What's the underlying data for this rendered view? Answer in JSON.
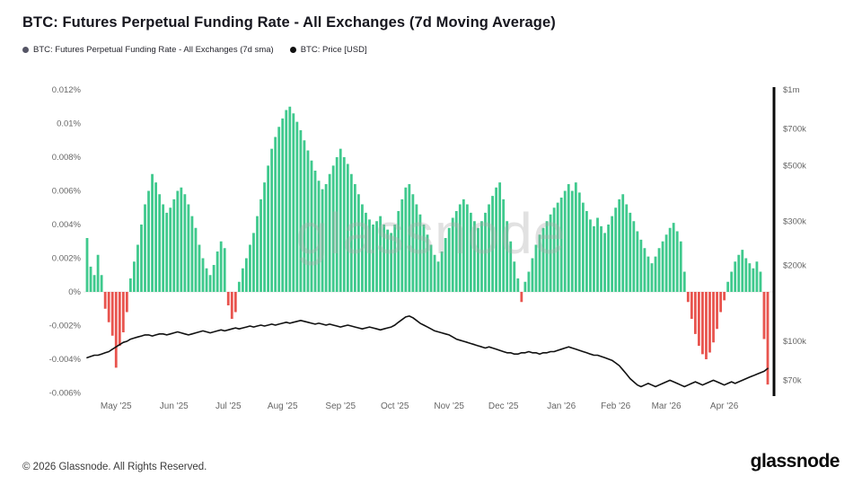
{
  "header": {
    "title": "BTC: Futures Perpetual Funding Rate - All Exchanges (7d Moving Average)"
  },
  "legend": {
    "funding": "BTC: Futures Perpetual Funding Rate - All Exchanges (7d sma)",
    "price": "BTC: Price [USD]"
  },
  "watermark": "glassnode",
  "footer": {
    "copyright": "© 2026 Glassnode. All Rights Reserved.",
    "logo_text": "glassnode"
  },
  "colors": {
    "positive_bar": "#3fc98d",
    "negative_bar": "#e8544e",
    "price_line": "#111111",
    "funding_legend_dot": "#555566",
    "price_legend_dot": "#111111",
    "axis_text": "#666666",
    "title_text": "#16161e",
    "watermark_gray": "#d9d9d9"
  },
  "chart_data": {
    "type": "bar",
    "title": "BTC: Futures Perpetual Funding Rate - All Exchanges (7d Moving Average)",
    "legend_position": "top-left",
    "grid": false,
    "x_tick_labels": [
      "May '25",
      "Jun '25",
      "Jul '25",
      "Aug '25",
      "Sep '25",
      "Oct '25",
      "Nov '25",
      "Dec '25",
      "Jan '26",
      "Feb '26",
      "Mar '26",
      "Apr '26"
    ],
    "x_tick_indices": [
      8,
      24,
      39,
      54,
      70,
      85,
      100,
      115,
      131,
      146,
      160,
      176
    ],
    "left_axis": {
      "unit": "%",
      "range": [
        -0.006,
        0.012
      ],
      "ticks": [
        0.012,
        0.01,
        0.008,
        0.006,
        0.004,
        0.002,
        0,
        -0.002,
        -0.004,
        -0.006
      ],
      "labels": [
        "0.012%",
        "0.01%",
        "0.008%",
        "0.006%",
        "0.004%",
        "0.002%",
        "0%",
        "-0.002%",
        "-0.004%",
        "-0.006%"
      ]
    },
    "right_axis": {
      "scale": "log",
      "unit": "USD (thousands)",
      "ticks": [
        1000,
        700,
        500,
        300,
        200,
        100,
        70
      ],
      "labels": [
        "$1m",
        "$700k",
        "$500k",
        "$300k",
        "$200k",
        "$100k",
        "$70k"
      ]
    },
    "series": [
      {
        "name": "BTC: Futures Perpetual Funding Rate - All Exchanges (7d sma)",
        "type": "bar",
        "axis": "left",
        "unit": "%",
        "color_positive": "#3fc98d",
        "color_negative": "#e8544e",
        "values": [
          0.0032,
          0.0015,
          0.001,
          0.0022,
          0.001,
          -0.001,
          -0.0018,
          -0.0026,
          -0.0045,
          -0.0032,
          -0.0024,
          -0.0012,
          0.0008,
          0.0018,
          0.0028,
          0.004,
          0.0052,
          0.006,
          0.007,
          0.0065,
          0.0058,
          0.0052,
          0.0047,
          0.005,
          0.0055,
          0.006,
          0.0062,
          0.0058,
          0.0052,
          0.0045,
          0.0038,
          0.0028,
          0.002,
          0.0014,
          0.001,
          0.0016,
          0.0024,
          0.003,
          0.0026,
          -0.0008,
          -0.0016,
          -0.0012,
          0.0006,
          0.0014,
          0.002,
          0.0028,
          0.0035,
          0.0045,
          0.0055,
          0.0065,
          0.0075,
          0.0085,
          0.0092,
          0.0098,
          0.0103,
          0.0108,
          0.011,
          0.0106,
          0.0101,
          0.0096,
          0.009,
          0.0084,
          0.0078,
          0.0072,
          0.0066,
          0.0061,
          0.0064,
          0.007,
          0.0075,
          0.008,
          0.0085,
          0.008,
          0.0076,
          0.007,
          0.0064,
          0.0058,
          0.0052,
          0.0047,
          0.0043,
          0.004,
          0.0042,
          0.0045,
          0.004,
          0.0037,
          0.0035,
          0.004,
          0.0048,
          0.0055,
          0.0062,
          0.0064,
          0.0058,
          0.0052,
          0.0046,
          0.004,
          0.0034,
          0.0028,
          0.0022,
          0.0018,
          0.0024,
          0.0032,
          0.0038,
          0.0044,
          0.0048,
          0.0052,
          0.0055,
          0.0052,
          0.0047,
          0.0042,
          0.0038,
          0.0042,
          0.0047,
          0.0052,
          0.0057,
          0.0062,
          0.0065,
          0.0055,
          0.0042,
          0.003,
          0.0018,
          0.0008,
          -0.0006,
          0.0006,
          0.0012,
          0.002,
          0.0028,
          0.0034,
          0.0038,
          0.0042,
          0.0046,
          0.005,
          0.0053,
          0.0056,
          0.006,
          0.0064,
          0.006,
          0.0065,
          0.0059,
          0.0053,
          0.0048,
          0.0043,
          0.0039,
          0.0044,
          0.0039,
          0.0035,
          0.004,
          0.0045,
          0.005,
          0.0055,
          0.0058,
          0.0052,
          0.0047,
          0.0042,
          0.0036,
          0.0031,
          0.0026,
          0.0021,
          0.0017,
          0.0021,
          0.0026,
          0.003,
          0.0034,
          0.0038,
          0.0041,
          0.0036,
          0.003,
          0.0012,
          -0.0006,
          -0.0016,
          -0.0025,
          -0.0032,
          -0.0037,
          -0.004,
          -0.0036,
          -0.003,
          -0.0022,
          -0.0012,
          -0.0005,
          0.0006,
          0.0012,
          0.0018,
          0.0022,
          0.0025,
          0.002,
          0.0017,
          0.0014,
          0.0018,
          0.0012,
          -0.0028,
          -0.0055
        ]
      },
      {
        "name": "BTC: Price [USD]",
        "type": "line",
        "axis": "right",
        "unit": "USD (thousands)",
        "color": "#111111",
        "values": [
          86,
          87,
          88,
          88,
          89,
          90,
          91,
          93,
          95,
          97,
          99,
          100,
          102,
          103,
          104,
          105,
          106,
          106,
          105,
          106,
          107,
          107,
          106,
          107,
          108,
          109,
          108,
          107,
          106,
          107,
          108,
          109,
          110,
          109,
          108,
          109,
          110,
          111,
          110,
          111,
          112,
          113,
          112,
          113,
          114,
          115,
          114,
          115,
          116,
          115,
          116,
          117,
          116,
          117,
          118,
          119,
          118,
          119,
          120,
          121,
          120,
          119,
          118,
          117,
          118,
          117,
          116,
          117,
          116,
          115,
          114,
          115,
          116,
          115,
          114,
          113,
          112,
          113,
          114,
          113,
          112,
          111,
          112,
          113,
          114,
          116,
          119,
          122,
          125,
          126,
          124,
          121,
          118,
          116,
          114,
          112,
          110,
          109,
          108,
          107,
          106,
          104,
          102,
          101,
          100,
          99,
          98,
          97,
          96,
          95,
          94,
          95,
          94,
          93,
          92,
          91,
          90,
          90,
          89,
          89,
          90,
          90,
          91,
          90,
          90,
          89,
          90,
          90,
          91,
          91,
          92,
          93,
          94,
          95,
          94,
          93,
          92,
          91,
          90,
          89,
          88,
          88,
          87,
          86,
          85,
          84,
          82,
          80,
          77,
          74,
          71,
          69,
          67,
          66,
          67,
          68,
          67,
          66,
          67,
          68,
          69,
          70,
          69,
          68,
          67,
          66,
          67,
          68,
          69,
          68,
          67,
          68,
          69,
          70,
          69,
          68,
          67,
          68,
          69,
          68,
          69,
          70,
          71,
          72,
          73,
          74,
          75,
          76,
          78
        ]
      }
    ]
  }
}
